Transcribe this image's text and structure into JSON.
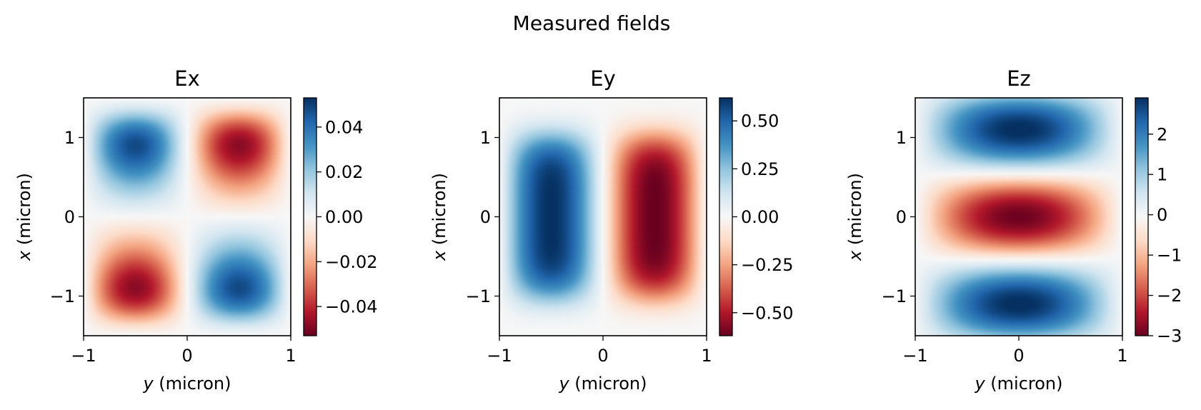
{
  "title": "Measured fields",
  "chart_data": [
    {
      "type": "heatmap",
      "title": "Ex",
      "xlabel_var": "y",
      "xlabel_unit": " (micron)",
      "ylabel_var": "x",
      "ylabel_unit": " (micron)",
      "xlim": [
        -1,
        1
      ],
      "ylim": [
        -1.5,
        1.5
      ],
      "xticks": [
        -1,
        0,
        1
      ],
      "yticks": [
        -1,
        0,
        1
      ],
      "xtick_labels": [
        "−1",
        "0",
        "1"
      ],
      "ytick_labels": [
        "−1",
        "0",
        "1"
      ],
      "colormap": "RdBu",
      "clim": [
        -0.053,
        0.053
      ],
      "cbar_ticks": [
        0.04,
        0.02,
        0.0,
        -0.02,
        -0.04
      ],
      "cbar_tick_labels": [
        "0.04",
        "0.02",
        "0.00",
        "−0.02",
        "−0.04"
      ],
      "pattern": "antisymmetric four-lobe: positive lobes upper-left and lower-right, negative lobes upper-right and lower-left"
    },
    {
      "type": "heatmap",
      "title": "Ey",
      "xlabel_var": "y",
      "xlabel_unit": " (micron)",
      "ylabel_var": "x",
      "ylabel_unit": " (micron)",
      "xlim": [
        -1,
        1
      ],
      "ylim": [
        -1.5,
        1.5
      ],
      "xticks": [
        -1,
        0,
        1
      ],
      "yticks": [
        -1,
        0,
        1
      ],
      "xtick_labels": [
        "−1",
        "0",
        "1"
      ],
      "ytick_labels": [
        "−1",
        "0",
        "1"
      ],
      "colormap": "RdBu",
      "clim": [
        -0.62,
        0.62
      ],
      "cbar_ticks": [
        0.5,
        0.25,
        0.0,
        -0.25,
        -0.5
      ],
      "cbar_tick_labels": [
        "0.50",
        "0.25",
        "0.00",
        "−0.25",
        "−0.50"
      ],
      "pattern": "two vertical lobes: positive at y≈-0.5, negative at y≈+0.5"
    },
    {
      "type": "heatmap",
      "title": "Ez",
      "xlabel_var": "y",
      "xlabel_unit": " (micron)",
      "ylabel_var": "x",
      "ylabel_unit": " (micron)",
      "xlim": [
        -1,
        1
      ],
      "ylim": [
        -1.5,
        1.5
      ],
      "xticks": [
        -1,
        0,
        1
      ],
      "yticks": [
        -1,
        0,
        1
      ],
      "xtick_labels": [
        "−1",
        "0",
        "1"
      ],
      "ytick_labels": [
        "−1",
        "0",
        "1"
      ],
      "colormap": "RdBu",
      "clim": [
        -3,
        2.9
      ],
      "cbar_ticks": [
        2,
        1,
        0,
        -1,
        -2,
        -3
      ],
      "cbar_tick_labels": [
        "2",
        "1",
        "0",
        "−1",
        "−2",
        "−3"
      ],
      "pattern": "three horizontal bands: positive at x≈±1.1, negative at x≈0"
    }
  ]
}
